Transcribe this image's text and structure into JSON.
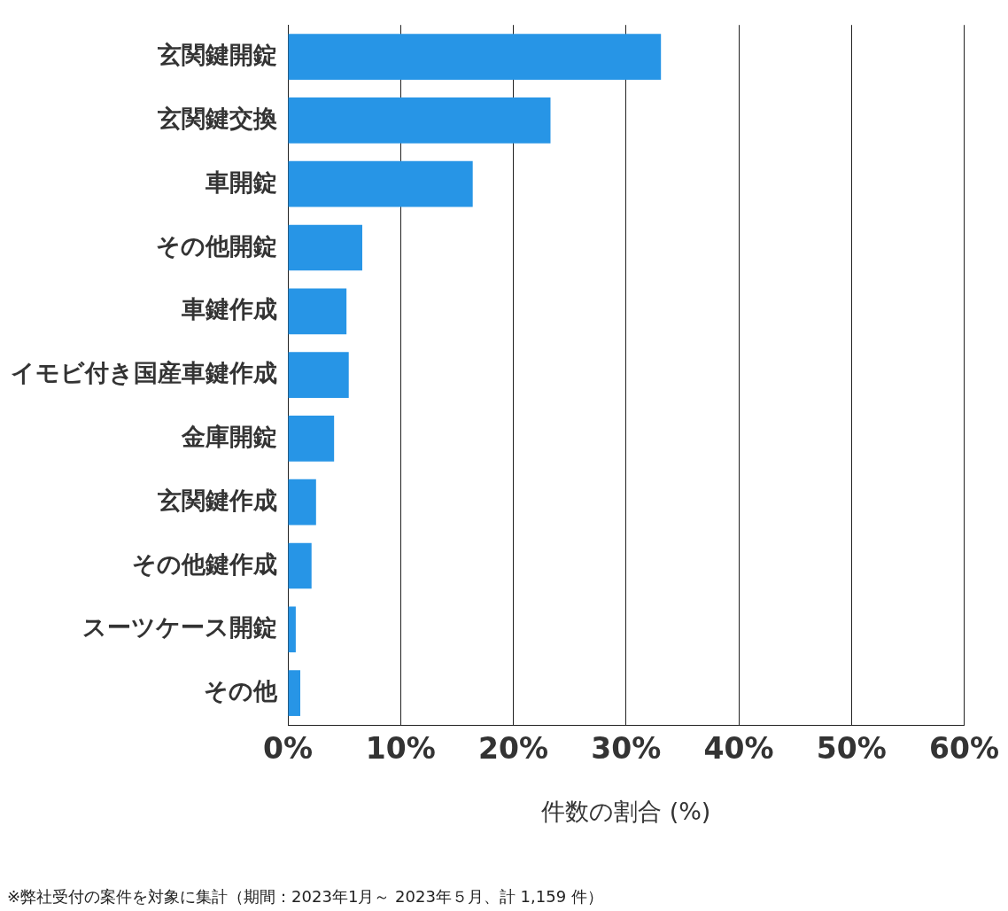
{
  "chart_data": {
    "type": "bar",
    "orientation": "horizontal",
    "categories": [
      "玄関鍵開錠",
      "玄関鍵交換",
      "車開錠",
      "その他開錠",
      "車鍵作成",
      "イモビ付き国産車鍵作成",
      "金庫開錠",
      "玄関鍵作成",
      "その他鍵作成",
      "スーツケース開錠",
      "その他"
    ],
    "values": [
      33.1,
      23.3,
      16.4,
      6.6,
      5.2,
      5.4,
      4.1,
      2.5,
      2.1,
      0.7,
      1.1
    ],
    "color": "#2795e6",
    "xlim": [
      0,
      60
    ],
    "xticks": [
      {
        "value": 0,
        "label": "0%"
      },
      {
        "value": 10,
        "label": "10%"
      },
      {
        "value": 20,
        "label": "20%"
      },
      {
        "value": 30,
        "label": "30%"
      },
      {
        "value": 40,
        "label": "40%"
      },
      {
        "value": 50,
        "label": "50%"
      },
      {
        "value": 60,
        "label": "60%"
      }
    ],
    "xlabel": "件数の割合 (%)",
    "grid": "x",
    "legend": false,
    "annotations": [
      "※弊社受付の案件を対象に集計（期間：2023年1月～ 2023年５月、計 1,159 件）"
    ]
  }
}
